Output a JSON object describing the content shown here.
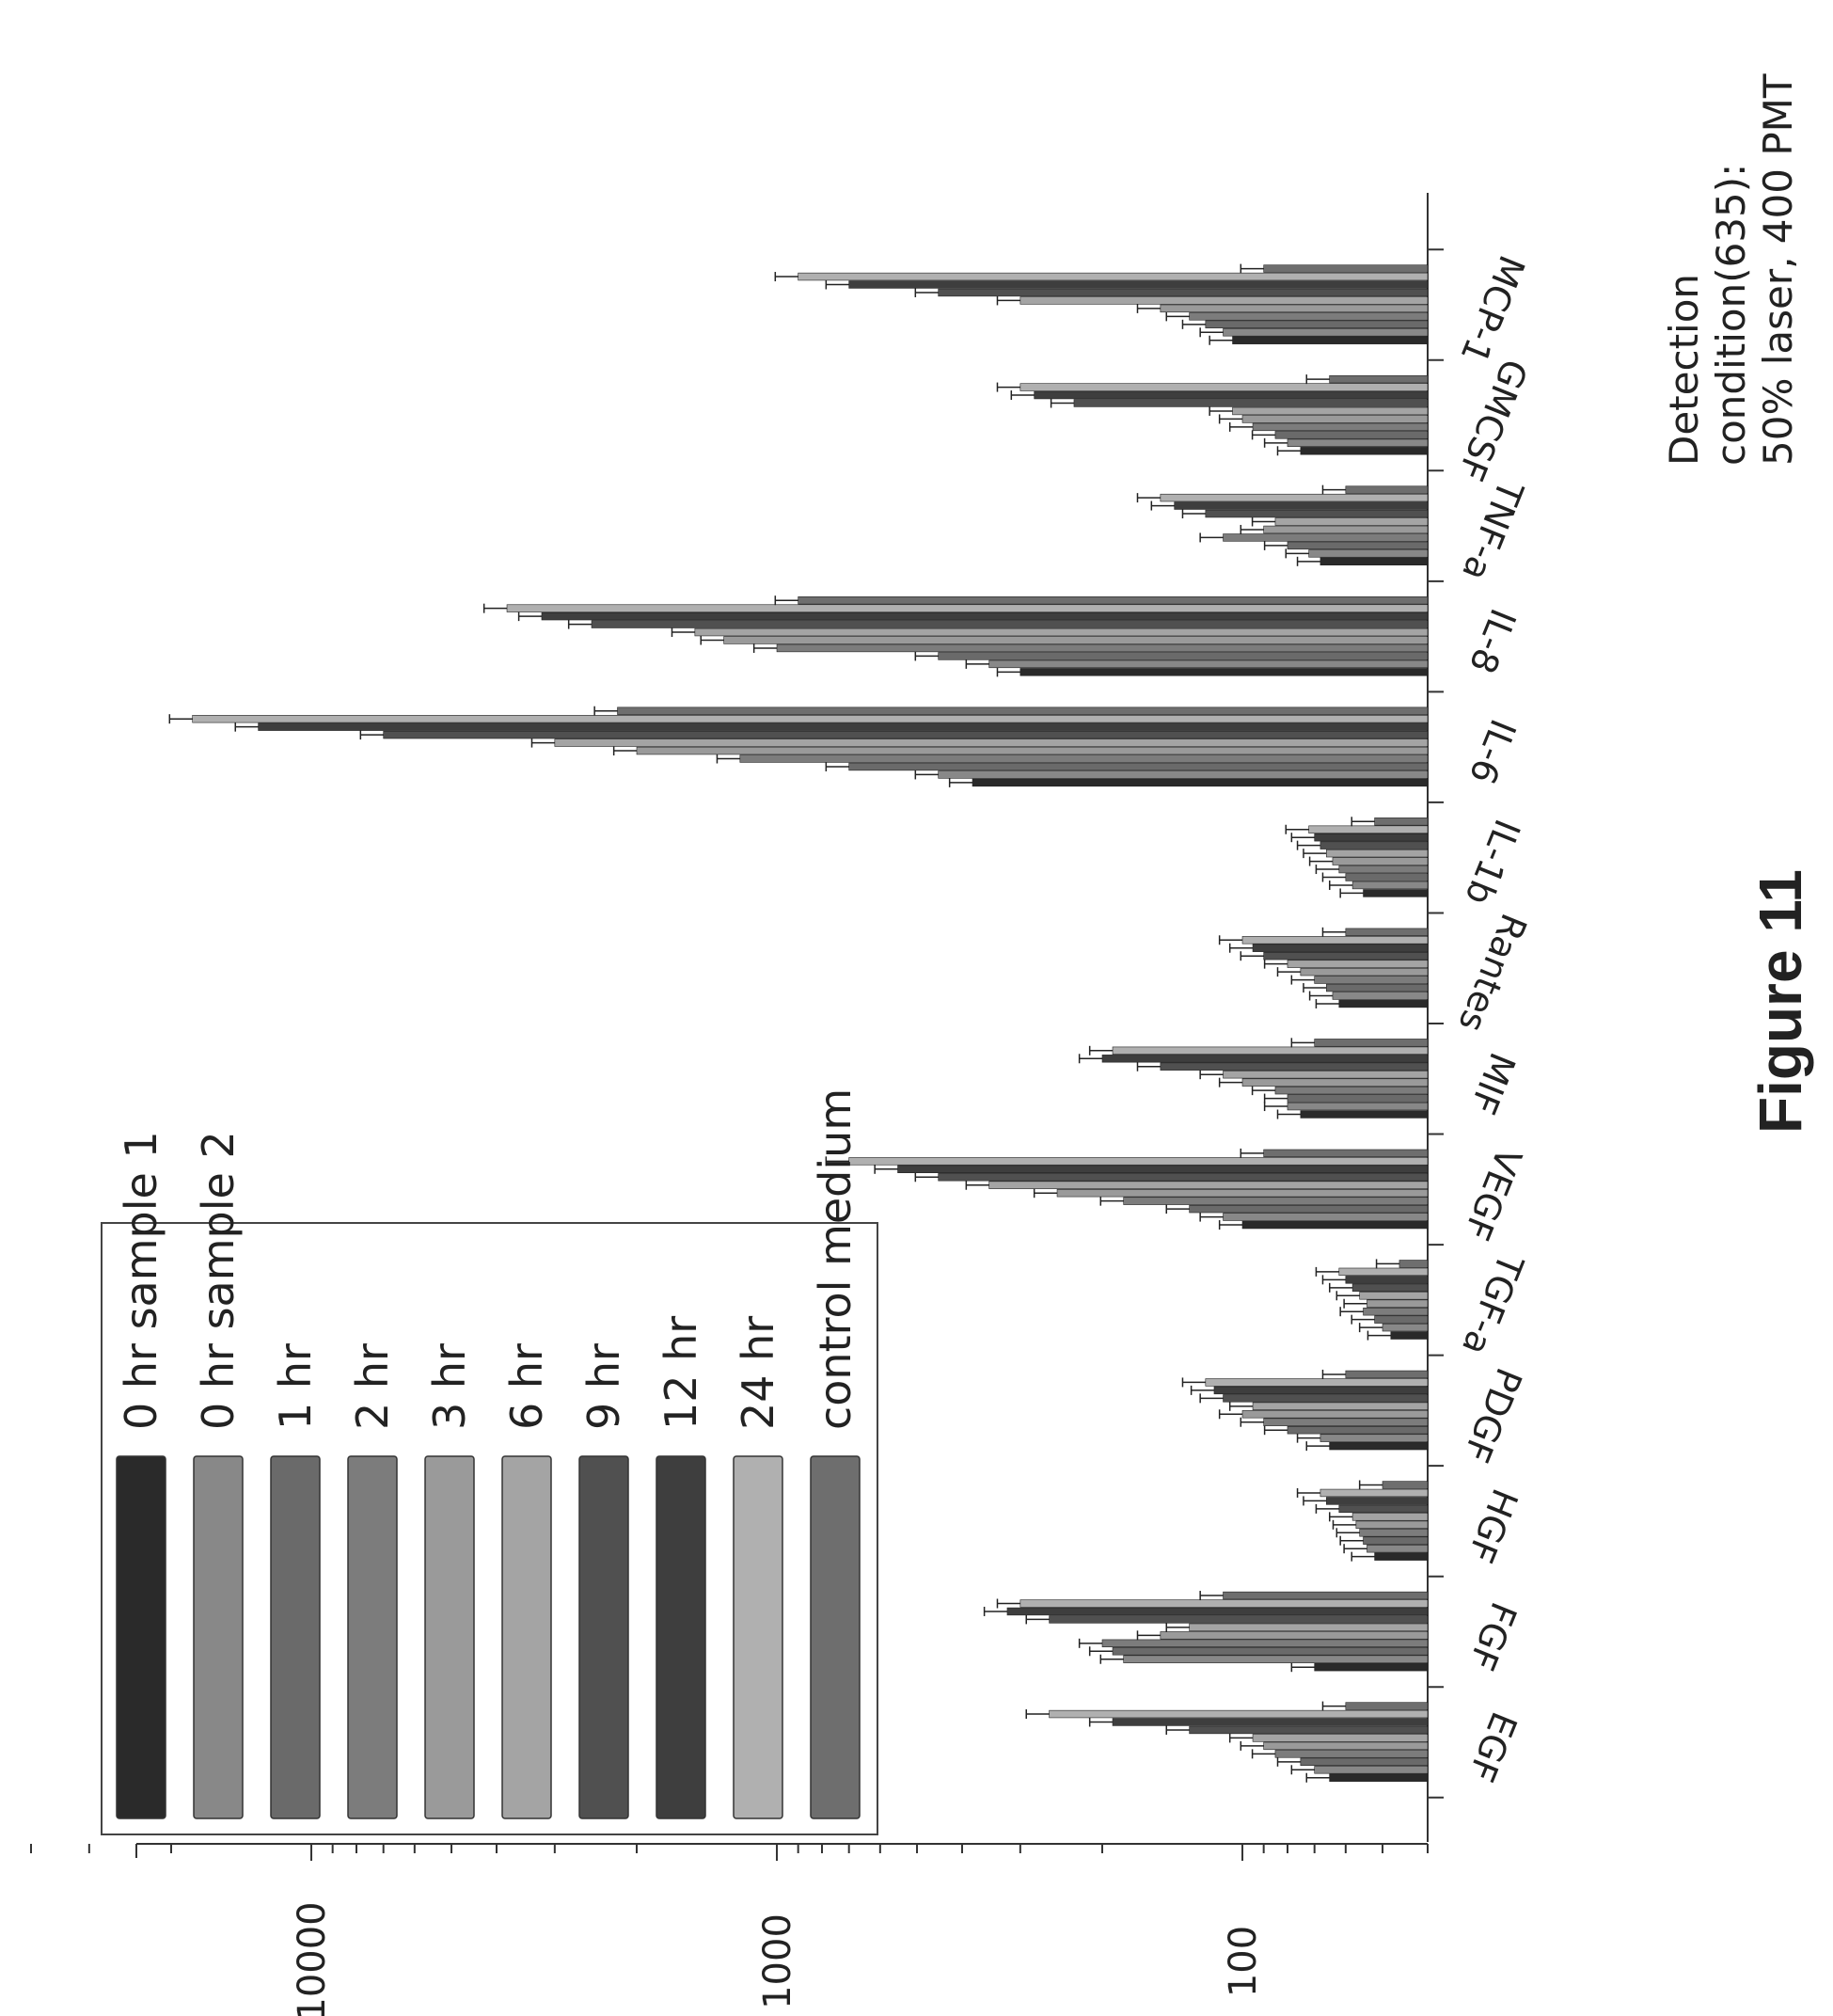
{
  "figure_label": "Figure 11",
  "annotation": {
    "line1": "Detection",
    "line2": "condition(635):",
    "line3": "50% laser, 400 PMT"
  },
  "chart_data": {
    "type": "bar",
    "orientation": "rotated 90 degrees clockwise (value axis horizontal, increasing toward the left)",
    "y_scale": "log",
    "ylim": [
      40,
      40000
    ],
    "y_ticks": [
      100,
      1000,
      10000
    ],
    "y_tick_labels": [
      "100",
      "1000",
      "10000"
    ],
    "categories": [
      "EGF",
      "FGF",
      "HGF",
      "PDGF",
      "TGF-a",
      "VEGF",
      "MIF",
      "Rantes",
      "IL-1b",
      "IL-6",
      "IL-8",
      "TNF-a",
      "GMCSF",
      "MCP-1"
    ],
    "legend": {
      "position": "top-left (rotated)",
      "entries": [
        "0 hr sample 1",
        "0 hr sample 2",
        "1 hr",
        "2 hr",
        "3 hr",
        "6 hr",
        "9 hr",
        "12 hr",
        "24 hr",
        "control medium"
      ]
    },
    "series": [
      {
        "name": "0 hr sample 1",
        "color": "#2a2a2a",
        "values": [
          65,
          70,
          52,
          65,
          48,
          100,
          75,
          62,
          55,
          380,
          300,
          68,
          75,
          105
        ]
      },
      {
        "name": "0 hr sample 2",
        "color": "#888888",
        "values": [
          70,
          180,
          54,
          68,
          50,
          110,
          80,
          64,
          58,
          450,
          350,
          72,
          80,
          110
        ]
      },
      {
        "name": "1 hr",
        "color": "#6a6a6a",
        "values": [
          75,
          190,
          55,
          80,
          52,
          130,
          80,
          66,
          60,
          700,
          450,
          80,
          85,
          120
        ]
      },
      {
        "name": "2 hr",
        "color": "#7c7c7c",
        "values": [
          85,
          200,
          56,
          90,
          55,
          180,
          85,
          70,
          62,
          1200,
          1000,
          110,
          95,
          130
        ]
      },
      {
        "name": "3 hr",
        "color": "#9a9a9a",
        "values": [
          90,
          150,
          57,
          100,
          54,
          250,
          100,
          75,
          64,
          2000,
          1300,
          90,
          100,
          150
        ]
      },
      {
        "name": "6 hr",
        "color": "#a4a4a4",
        "values": [
          95,
          130,
          58,
          95,
          56,
          350,
          110,
          80,
          66,
          3000,
          1500,
          85,
          105,
          300
        ]
      },
      {
        "name": "9 hr",
        "color": "#505050",
        "values": [
          130,
          260,
          62,
          110,
          58,
          450,
          150,
          90,
          68,
          7000,
          2500,
          120,
          230,
          450
        ]
      },
      {
        "name": "12 hr",
        "color": "#3e3e3e",
        "values": [
          190,
          320,
          66,
          115,
          60,
          550,
          200,
          95,
          70,
          13000,
          3200,
          140,
          280,
          700
        ]
      },
      {
        "name": "24 hr",
        "color": "#b0b0b0",
        "values": [
          260,
          300,
          68,
          120,
          62,
          700,
          190,
          100,
          72,
          18000,
          3800,
          150,
          300,
          900
        ]
      },
      {
        "name": "control medium",
        "color": "#6e6e6e",
        "values": [
          60,
          110,
          50,
          60,
          46,
          90,
          70,
          60,
          52,
          2200,
          900,
          60,
          65,
          90
        ]
      }
    ]
  }
}
